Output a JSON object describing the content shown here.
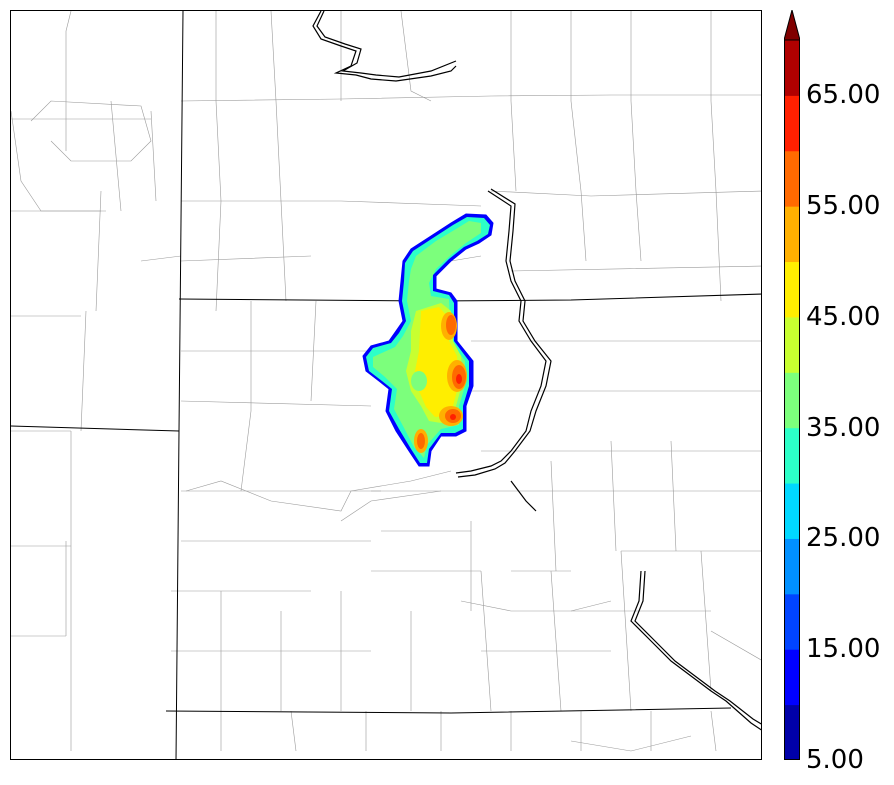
{
  "map": {
    "counties": "thin gray county boundaries",
    "states": "black state boundaries",
    "rivers": "double-line rivers"
  },
  "legend": {
    "levels": [
      5,
      10,
      15,
      20,
      25,
      30,
      35,
      40,
      45,
      50,
      55,
      60,
      65,
      70
    ],
    "colors": [
      "#0000a8",
      "#0000ff",
      "#0044ff",
      "#0090ff",
      "#00d8ff",
      "#2cffc8",
      "#7cff7c",
      "#c8ff30",
      "#ffee00",
      "#ffb000",
      "#ff6a00",
      "#ff2000",
      "#b00000",
      "#800000"
    ],
    "tick_labels": [
      "5.00",
      "15.00",
      "25.00",
      "35.00",
      "45.00",
      "55.00",
      "65.00"
    ],
    "extend": "max"
  }
}
